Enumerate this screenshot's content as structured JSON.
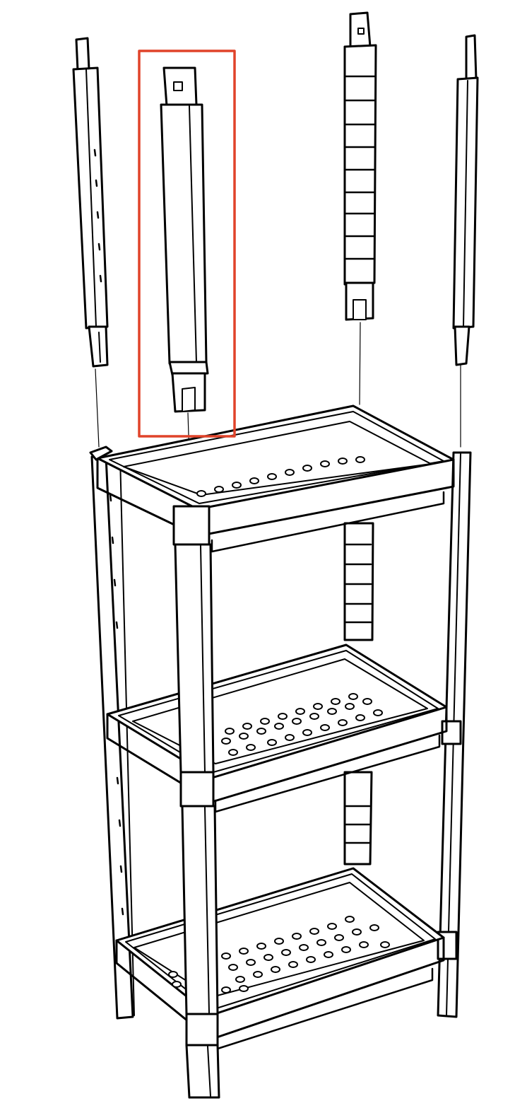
{
  "diagram": {
    "line_color": "#000000",
    "fill_color": "#ffffff",
    "highlight_color": "#e0432a",
    "parts": [
      "leg-extension-rear-left",
      "leg-extension-front-left",
      "leg-extension-rear-right",
      "leg-extension-front-right",
      "shelf-top",
      "shelf-middle",
      "shelf-bottom"
    ],
    "highlighted_part": "leg-extension-front-left",
    "shelf_count": 3,
    "leg_count": 4
  }
}
